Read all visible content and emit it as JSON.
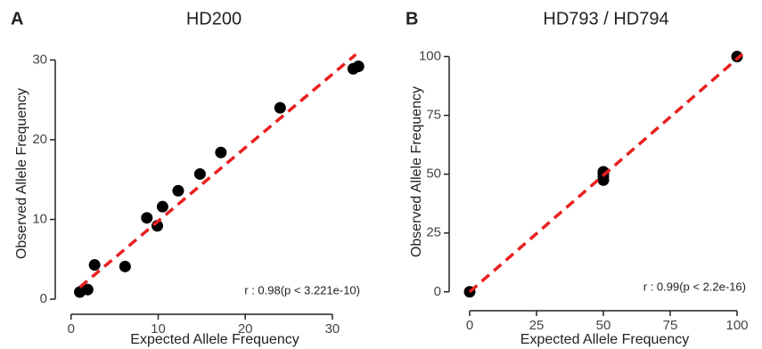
{
  "chart_data": [
    {
      "type": "scatter",
      "panel_label": "A",
      "title": "HD200",
      "x_label": "Expected Allele Frequency",
      "y_label": "Observed Allele Frequency",
      "annotation": "r : 0.98(p < 3.221e-10)",
      "x": [
        1.0,
        1.9,
        2.7,
        6.2,
        8.7,
        9.9,
        10.5,
        12.3,
        14.8,
        17.2,
        24.0,
        32.4,
        33.0
      ],
      "y": [
        0.9,
        1.2,
        4.3,
        4.1,
        10.2,
        9.2,
        11.6,
        13.6,
        15.7,
        18.4,
        24.0,
        28.9,
        29.2
      ],
      "color": "#000000",
      "fit": {
        "x": [
          1.0,
          32.7
        ],
        "y": [
          1.5,
          30.7
        ],
        "color": "#e8201f"
      },
      "xlim": [
        -1,
        34
      ],
      "ylim": [
        -1,
        32.5
      ],
      "xticks": [
        0,
        10,
        20,
        30
      ],
      "yticks": [
        0,
        10,
        20,
        30
      ]
    },
    {
      "type": "scatter",
      "panel_label": "B",
      "title": "HD793 / HD794",
      "x_label": "Expected Allele Frequency",
      "y_label": "Observed Allele Frequency",
      "annotation": "r : 0.99(p < 2.2e-16)",
      "x": [
        0,
        50,
        50,
        50,
        50,
        100
      ],
      "y": [
        0,
        47.5,
        49,
        50.5,
        51,
        100
      ],
      "color": "#000000",
      "fit": {
        "x": [
          0,
          102
        ],
        "y": [
          0,
          101
        ],
        "color": "#e8201f"
      },
      "xlim": [
        -5,
        106
      ],
      "ylim": [
        -5,
        107
      ],
      "xticks": [
        0,
        25,
        50,
        75,
        100
      ],
      "yticks": [
        0,
        25,
        50,
        75,
        100
      ]
    }
  ]
}
